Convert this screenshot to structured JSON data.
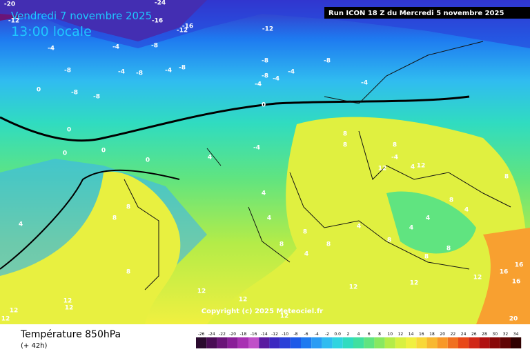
{
  "header": {
    "date": "Vendredi 7 novembre 2025",
    "time": "13:00 locale",
    "run": "Run ICON 18 Z du Mercredi 5 novembre 2025"
  },
  "footer": {
    "title": "Température 850hPa",
    "lead": "(+ 42h)"
  },
  "copyright": "Copyright (c) 2025 Meteociel.fr",
  "contour_labels": [
    "-20",
    "-24",
    "-16",
    "-12",
    "-16",
    "-12",
    "-12",
    "-8",
    "-4",
    "-4",
    "-8",
    "-4",
    "-8",
    "-4",
    "-8",
    "-8",
    "-4",
    "-8",
    "-4",
    "-8",
    "-8",
    "-4",
    "-8",
    "-4",
    "0",
    "0",
    "0",
    "0",
    "0",
    "0",
    "-4",
    "4",
    "-4",
    "4",
    "4",
    "8",
    "8",
    "12",
    "12",
    "8",
    "8",
    "8",
    "4",
    "4",
    "8",
    "4",
    "8",
    "8",
    "4",
    "4",
    "4",
    "8",
    "12",
    "12",
    "12",
    "12",
    "12",
    "12",
    "12",
    "8",
    "8",
    "12",
    "12",
    "16",
    "16",
    "16",
    "20",
    "8",
    "8",
    "12",
    "8",
    "4"
  ],
  "colorbar": {
    "ticks": [
      -26,
      -24,
      -22,
      -20,
      -18,
      -16,
      -14,
      -12,
      -10,
      -8,
      -6,
      -4,
      -2,
      {
        "value": 0,
        "label": "0.0"
      },
      2,
      4,
      6,
      8,
      10,
      12,
      14,
      16,
      18,
      20,
      22,
      24,
      26,
      28,
      30,
      32,
      34
    ],
    "colors": [
      "#2a0a2e",
      "#4a0c55",
      "#6a1478",
      "#8a1e98",
      "#a830b2",
      "#c050c8",
      "#5a1aa0",
      "#3c28c0",
      "#2a40d8",
      "#1e5ae8",
      "#1e7af0",
      "#2a9cf4",
      "#30bcf0",
      "#30d4e0",
      "#30dcc0",
      "#40e0a0",
      "#60e480",
      "#88e860",
      "#b4ec48",
      "#d8f040",
      "#f0f040",
      "#f8d838",
      "#f8b830",
      "#f89828",
      "#f07020",
      "#e84818",
      "#d02818",
      "#b01010",
      "#880808",
      "#600404",
      "#300000"
    ]
  }
}
